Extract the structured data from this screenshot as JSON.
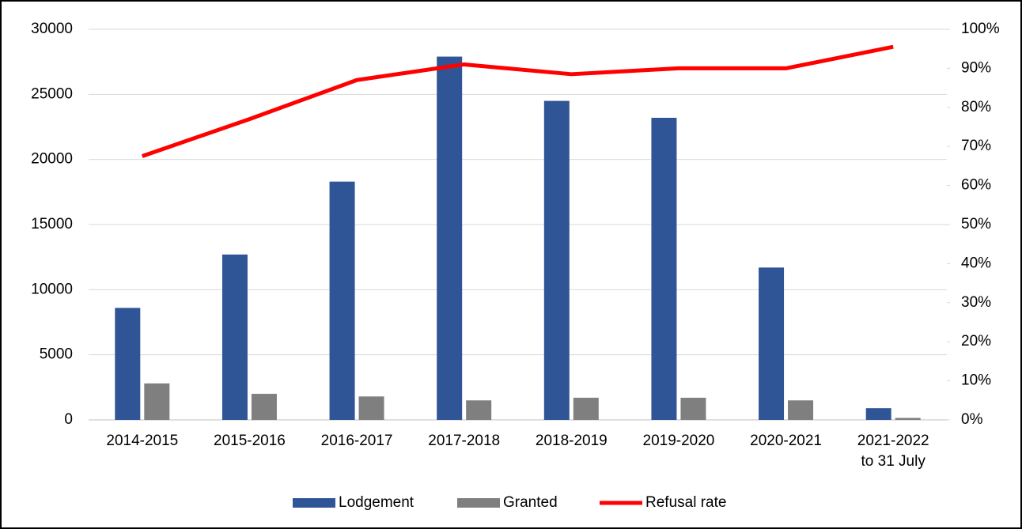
{
  "chart_data": {
    "type": "bar",
    "categories": [
      "2014-2015",
      "2015-2016",
      "2016-2017",
      "2017-2018",
      "2018-2019",
      "2019-2020",
      "2020-2021",
      [
        "2021-2022",
        "to 31 July"
      ]
    ],
    "series": [
      {
        "name": "Lodgement",
        "type": "bar",
        "color": "#2f5597",
        "values": [
          8600,
          12700,
          18300,
          27900,
          24500,
          23200,
          11700,
          900
        ]
      },
      {
        "name": "Granted",
        "type": "bar",
        "color": "#7f7f7f",
        "values": [
          2800,
          2000,
          1800,
          1500,
          1700,
          1700,
          1500,
          150
        ]
      },
      {
        "name": "Refusal rate",
        "type": "line",
        "axis": "y2",
        "color": "#ff0000",
        "values": [
          67.5,
          77,
          87,
          91,
          88.5,
          90,
          90,
          95.5
        ]
      }
    ],
    "ylim": [
      0,
      30000
    ],
    "yticks": [
      0,
      5000,
      10000,
      15000,
      20000,
      25000,
      30000
    ],
    "y2lim": [
      0,
      100
    ],
    "y2ticks": [
      {
        "value": 0,
        "label": "0%"
      },
      {
        "value": 10,
        "label": "10%"
      },
      {
        "value": 20,
        "label": "20%"
      },
      {
        "value": 30,
        "label": "30%"
      },
      {
        "value": 40,
        "label": "40%"
      },
      {
        "value": 50,
        "label": "50%"
      },
      {
        "value": 60,
        "label": "60%"
      },
      {
        "value": 70,
        "label": "70%"
      },
      {
        "value": 80,
        "label": "80%"
      },
      {
        "value": 90,
        "label": "90%"
      },
      {
        "value": 100,
        "label": "100%"
      }
    ],
    "grid": true,
    "legend": "bottom"
  }
}
